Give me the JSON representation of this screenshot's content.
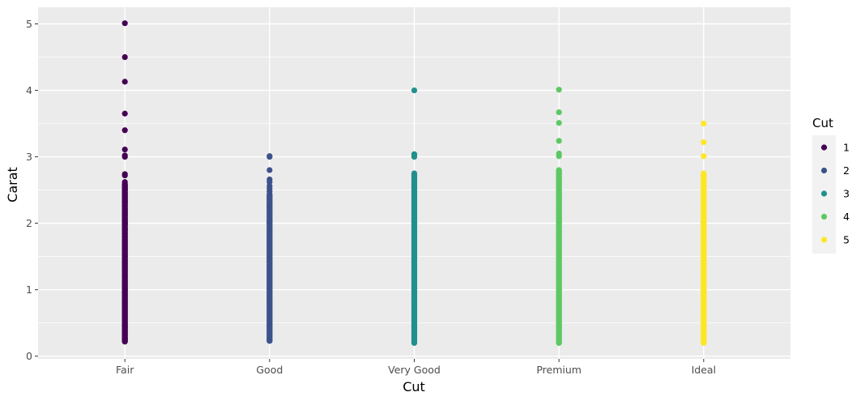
{
  "chart_data": {
    "type": "scatter",
    "title": "",
    "xlabel": "Cut",
    "ylabel": "Carat",
    "categories": [
      "Fair",
      "Good",
      "Very Good",
      "Premium",
      "Ideal"
    ],
    "yticks": [
      0,
      1,
      2,
      3,
      4,
      5
    ],
    "ylim": [
      -0.04,
      5.25
    ],
    "grid": true,
    "legend": {
      "title": "Cut",
      "placement": "right",
      "entries": [
        "1",
        "2",
        "3",
        "4",
        "5"
      ]
    },
    "colors": [
      "#440154",
      "#3b528b",
      "#21908c",
      "#5dc863",
      "#fde725"
    ],
    "series": [
      {
        "category": "Fair",
        "legend_key": "1",
        "range": [
          0.22,
          2.6
        ],
        "values": [
          5.01,
          4.5,
          4.13,
          3.65,
          3.4,
          3.11,
          3.02,
          3.0,
          2.74,
          2.72,
          2.62,
          2.58,
          2.55,
          2.52,
          2.5,
          2.46,
          2.42,
          2.38,
          2.34,
          2.31,
          2.27,
          2.22,
          2.18,
          2.15,
          2.12,
          2.08,
          2.04,
          2.01,
          2.0,
          1.98,
          1.93,
          1.9,
          1.85,
          1.8,
          1.75,
          1.71,
          1.68,
          1.64,
          1.6,
          1.55,
          1.52,
          1.5,
          1.45,
          1.41,
          1.36,
          1.32,
          1.28,
          1.24,
          1.2,
          1.15,
          1.11,
          1.07,
          1.03,
          1.0,
          0.96,
          0.92,
          0.88,
          0.84,
          0.8,
          0.76,
          0.72,
          0.68,
          0.64,
          0.6,
          0.56,
          0.52,
          0.48,
          0.44,
          0.4,
          0.36,
          0.32,
          0.28,
          0.25,
          0.22
        ]
      },
      {
        "category": "Good",
        "legend_key": "2",
        "range": [
          0.23,
          2.42
        ],
        "values": [
          3.01,
          3.0,
          2.8,
          2.66,
          2.62,
          2.56,
          2.52,
          2.48,
          2.44,
          2.4,
          2.36,
          2.32,
          2.28,
          2.24,
          2.2,
          2.16,
          2.12,
          2.08,
          2.04,
          2.01,
          2.0,
          1.96,
          1.92,
          1.88,
          1.84,
          1.8,
          1.76,
          1.72,
          1.68,
          1.64,
          1.6,
          1.56,
          1.52,
          1.5,
          1.46,
          1.42,
          1.38,
          1.34,
          1.3,
          1.26,
          1.22,
          1.18,
          1.14,
          1.1,
          1.06,
          1.02,
          1.0,
          0.96,
          0.92,
          0.88,
          0.84,
          0.8,
          0.76,
          0.72,
          0.68,
          0.64,
          0.6,
          0.56,
          0.52,
          0.48,
          0.44,
          0.4,
          0.36,
          0.32,
          0.28,
          0.25,
          0.23
        ]
      },
      {
        "category": "Very Good",
        "legend_key": "3",
        "range": [
          0.2,
          2.75
        ],
        "values": [
          4.0,
          3.04,
          3.01,
          3.0,
          2.75,
          2.72,
          2.68,
          2.64,
          2.6,
          2.56,
          2.52,
          2.48,
          2.44,
          2.4,
          2.36,
          2.32,
          2.28,
          2.24,
          2.2,
          2.16,
          2.12,
          2.08,
          2.04,
          2.01,
          2.0,
          1.96,
          1.92,
          1.88,
          1.84,
          1.8,
          1.76,
          1.72,
          1.68,
          1.64,
          1.6,
          1.56,
          1.52,
          1.5,
          1.46,
          1.42,
          1.38,
          1.34,
          1.3,
          1.26,
          1.22,
          1.18,
          1.14,
          1.1,
          1.06,
          1.02,
          1.0,
          0.96,
          0.92,
          0.88,
          0.84,
          0.8,
          0.76,
          0.72,
          0.68,
          0.64,
          0.6,
          0.56,
          0.52,
          0.48,
          0.44,
          0.4,
          0.36,
          0.32,
          0.28,
          0.24,
          0.2
        ]
      },
      {
        "category": "Premium",
        "legend_key": "4",
        "range": [
          0.2,
          2.8
        ],
        "values": [
          4.01,
          3.67,
          3.51,
          3.24,
          3.05,
          3.01,
          2.8,
          2.77,
          2.74,
          2.7,
          2.66,
          2.62,
          2.58,
          2.54,
          2.5,
          2.46,
          2.42,
          2.38,
          2.34,
          2.3,
          2.26,
          2.22,
          2.18,
          2.14,
          2.1,
          2.06,
          2.02,
          2.0,
          1.96,
          1.92,
          1.88,
          1.84,
          1.8,
          1.76,
          1.72,
          1.68,
          1.64,
          1.6,
          1.56,
          1.52,
          1.5,
          1.46,
          1.42,
          1.38,
          1.34,
          1.3,
          1.26,
          1.22,
          1.18,
          1.14,
          1.1,
          1.06,
          1.02,
          1.0,
          0.96,
          0.92,
          0.88,
          0.84,
          0.8,
          0.76,
          0.72,
          0.68,
          0.64,
          0.6,
          0.56,
          0.52,
          0.48,
          0.44,
          0.4,
          0.36,
          0.32,
          0.28,
          0.24,
          0.2
        ]
      },
      {
        "category": "Ideal",
        "legend_key": "5",
        "range": [
          0.2,
          2.75
        ],
        "values": [
          3.5,
          3.22,
          3.01,
          2.75,
          2.72,
          2.68,
          2.64,
          2.6,
          2.56,
          2.52,
          2.48,
          2.44,
          2.4,
          2.36,
          2.32,
          2.28,
          2.24,
          2.2,
          2.16,
          2.12,
          2.08,
          2.04,
          2.01,
          2.0,
          1.96,
          1.92,
          1.88,
          1.84,
          1.8,
          1.76,
          1.72,
          1.68,
          1.64,
          1.6,
          1.56,
          1.52,
          1.5,
          1.46,
          1.42,
          1.38,
          1.34,
          1.3,
          1.26,
          1.22,
          1.18,
          1.14,
          1.1,
          1.06,
          1.02,
          1.0,
          0.96,
          0.92,
          0.88,
          0.84,
          0.8,
          0.76,
          0.72,
          0.68,
          0.64,
          0.6,
          0.56,
          0.52,
          0.48,
          0.44,
          0.4,
          0.36,
          0.32,
          0.28,
          0.24,
          0.2
        ]
      }
    ]
  }
}
